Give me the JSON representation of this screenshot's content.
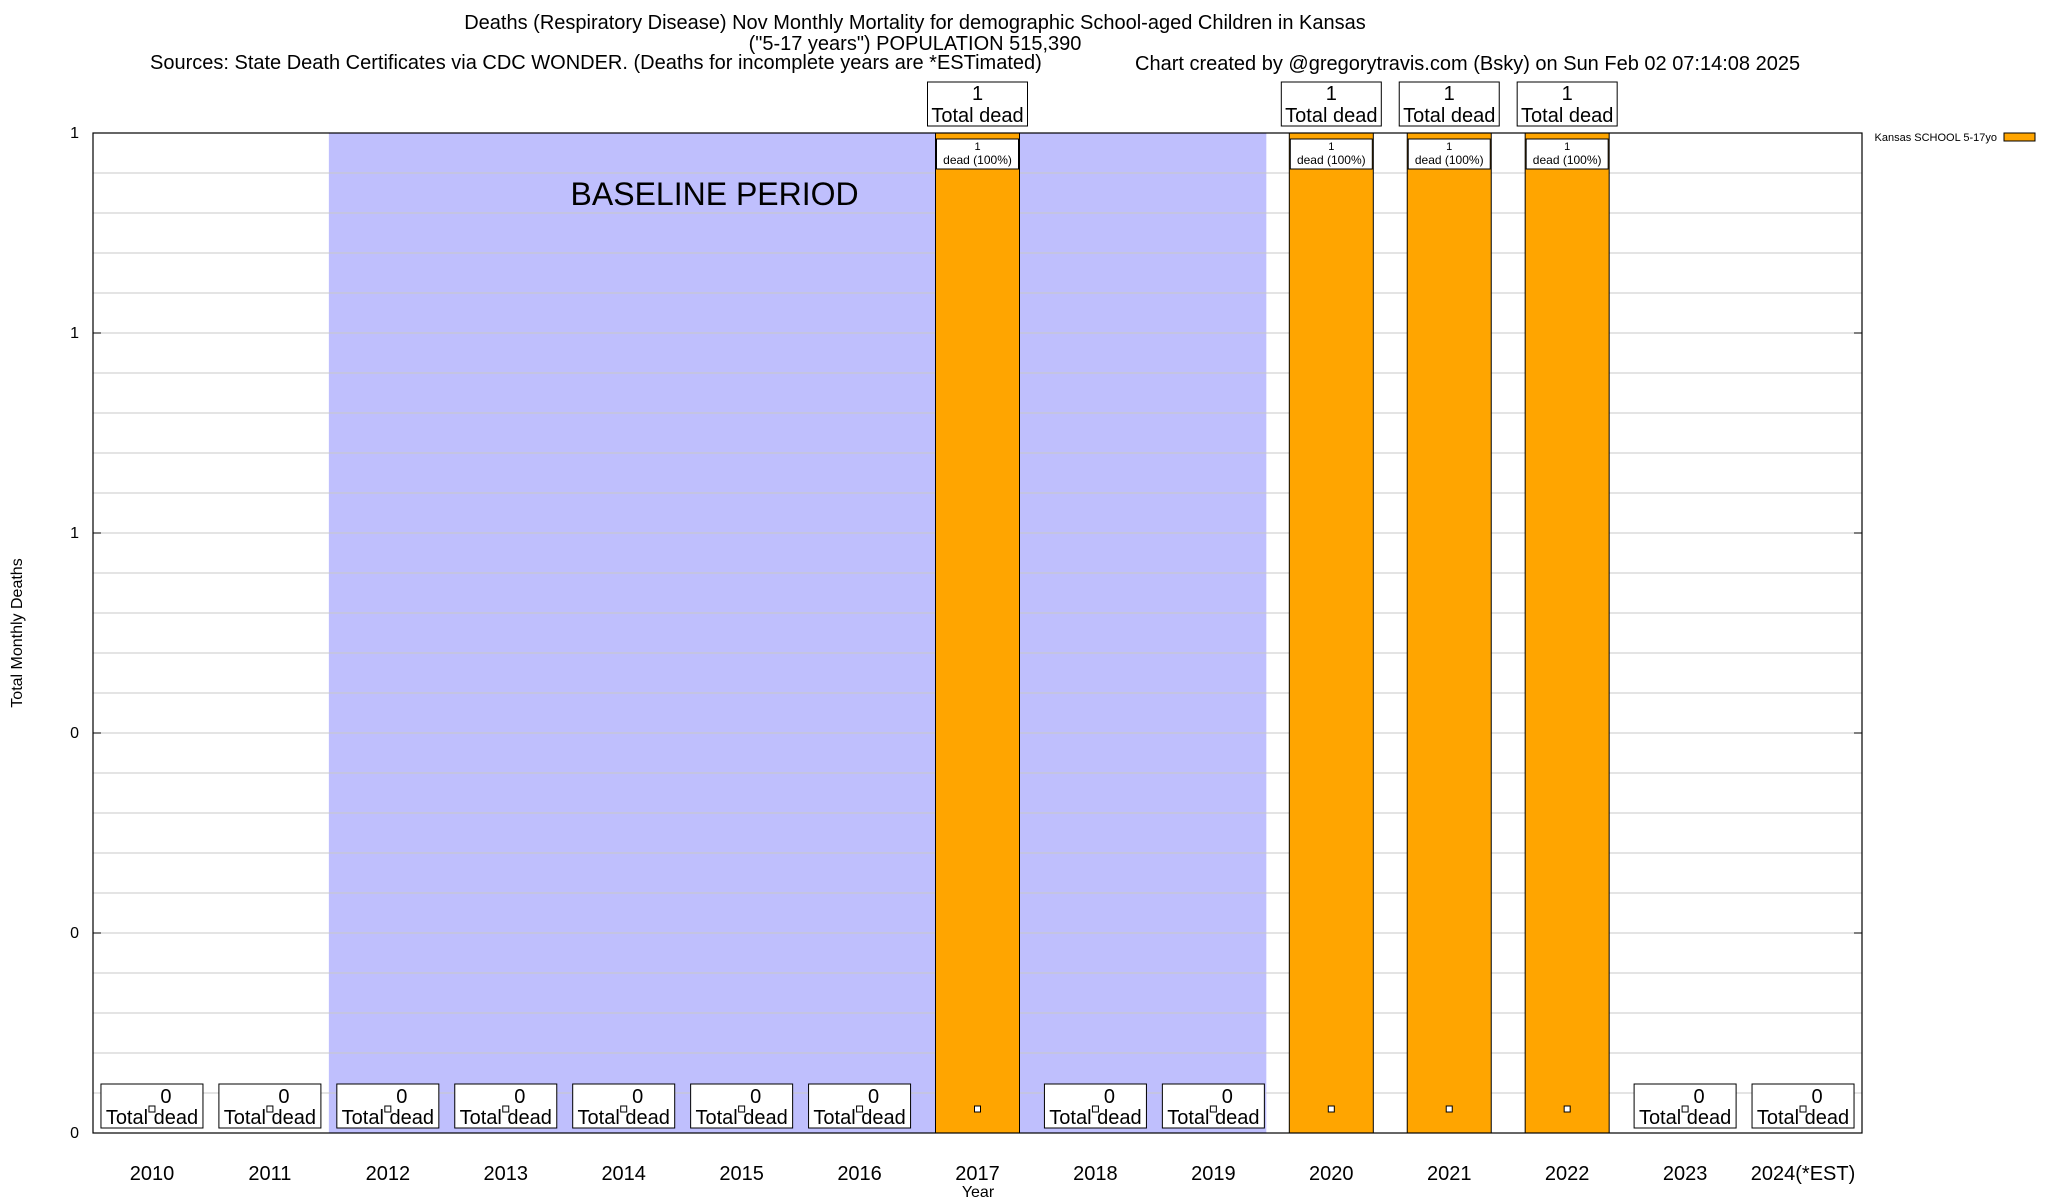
{
  "header": {
    "title_line1": "Deaths (Respiratory Disease) Nov Monthly Mortality for demographic School-aged Children in Kansas",
    "title_line2": "(\"5-17 years\") POPULATION 515,390",
    "sources": "Sources: State Death Certificates via CDC WONDER. (Deaths for incomplete years are *ESTimated)",
    "credit": "Chart created by @gregorytravis.com (Bsky) on Sun Feb 02 07:14:08 2025"
  },
  "chart_data": {
    "type": "bar",
    "xlabel": "Year",
    "ylabel": "Total Monthly Deaths",
    "ylim": [
      0,
      1
    ],
    "y_tick_labels": [
      "0",
      "0",
      "0",
      "1",
      "1",
      "1"
    ],
    "categories": [
      "2010",
      "2011",
      "2012",
      "2013",
      "2014",
      "2015",
      "2016",
      "2017",
      "2018",
      "2019",
      "2020",
      "2021",
      "2022",
      "2023",
      "2024(*EST)"
    ],
    "series": [
      {
        "name": "Kansas SCHOOL 5-17yo",
        "color": "#ffa500",
        "values": [
          0,
          0,
          0,
          0,
          0,
          0,
          0,
          1,
          0,
          0,
          1,
          1,
          1,
          0,
          0
        ]
      }
    ],
    "total_label_suffix": "Total dead",
    "inner_label_suffix": "dead (100%)",
    "baseline_period": {
      "label": "BASELINE PERIOD",
      "start": "2012",
      "end": "2019",
      "color": "#bfbffd"
    },
    "grid": true,
    "legend_position": "top-right"
  }
}
